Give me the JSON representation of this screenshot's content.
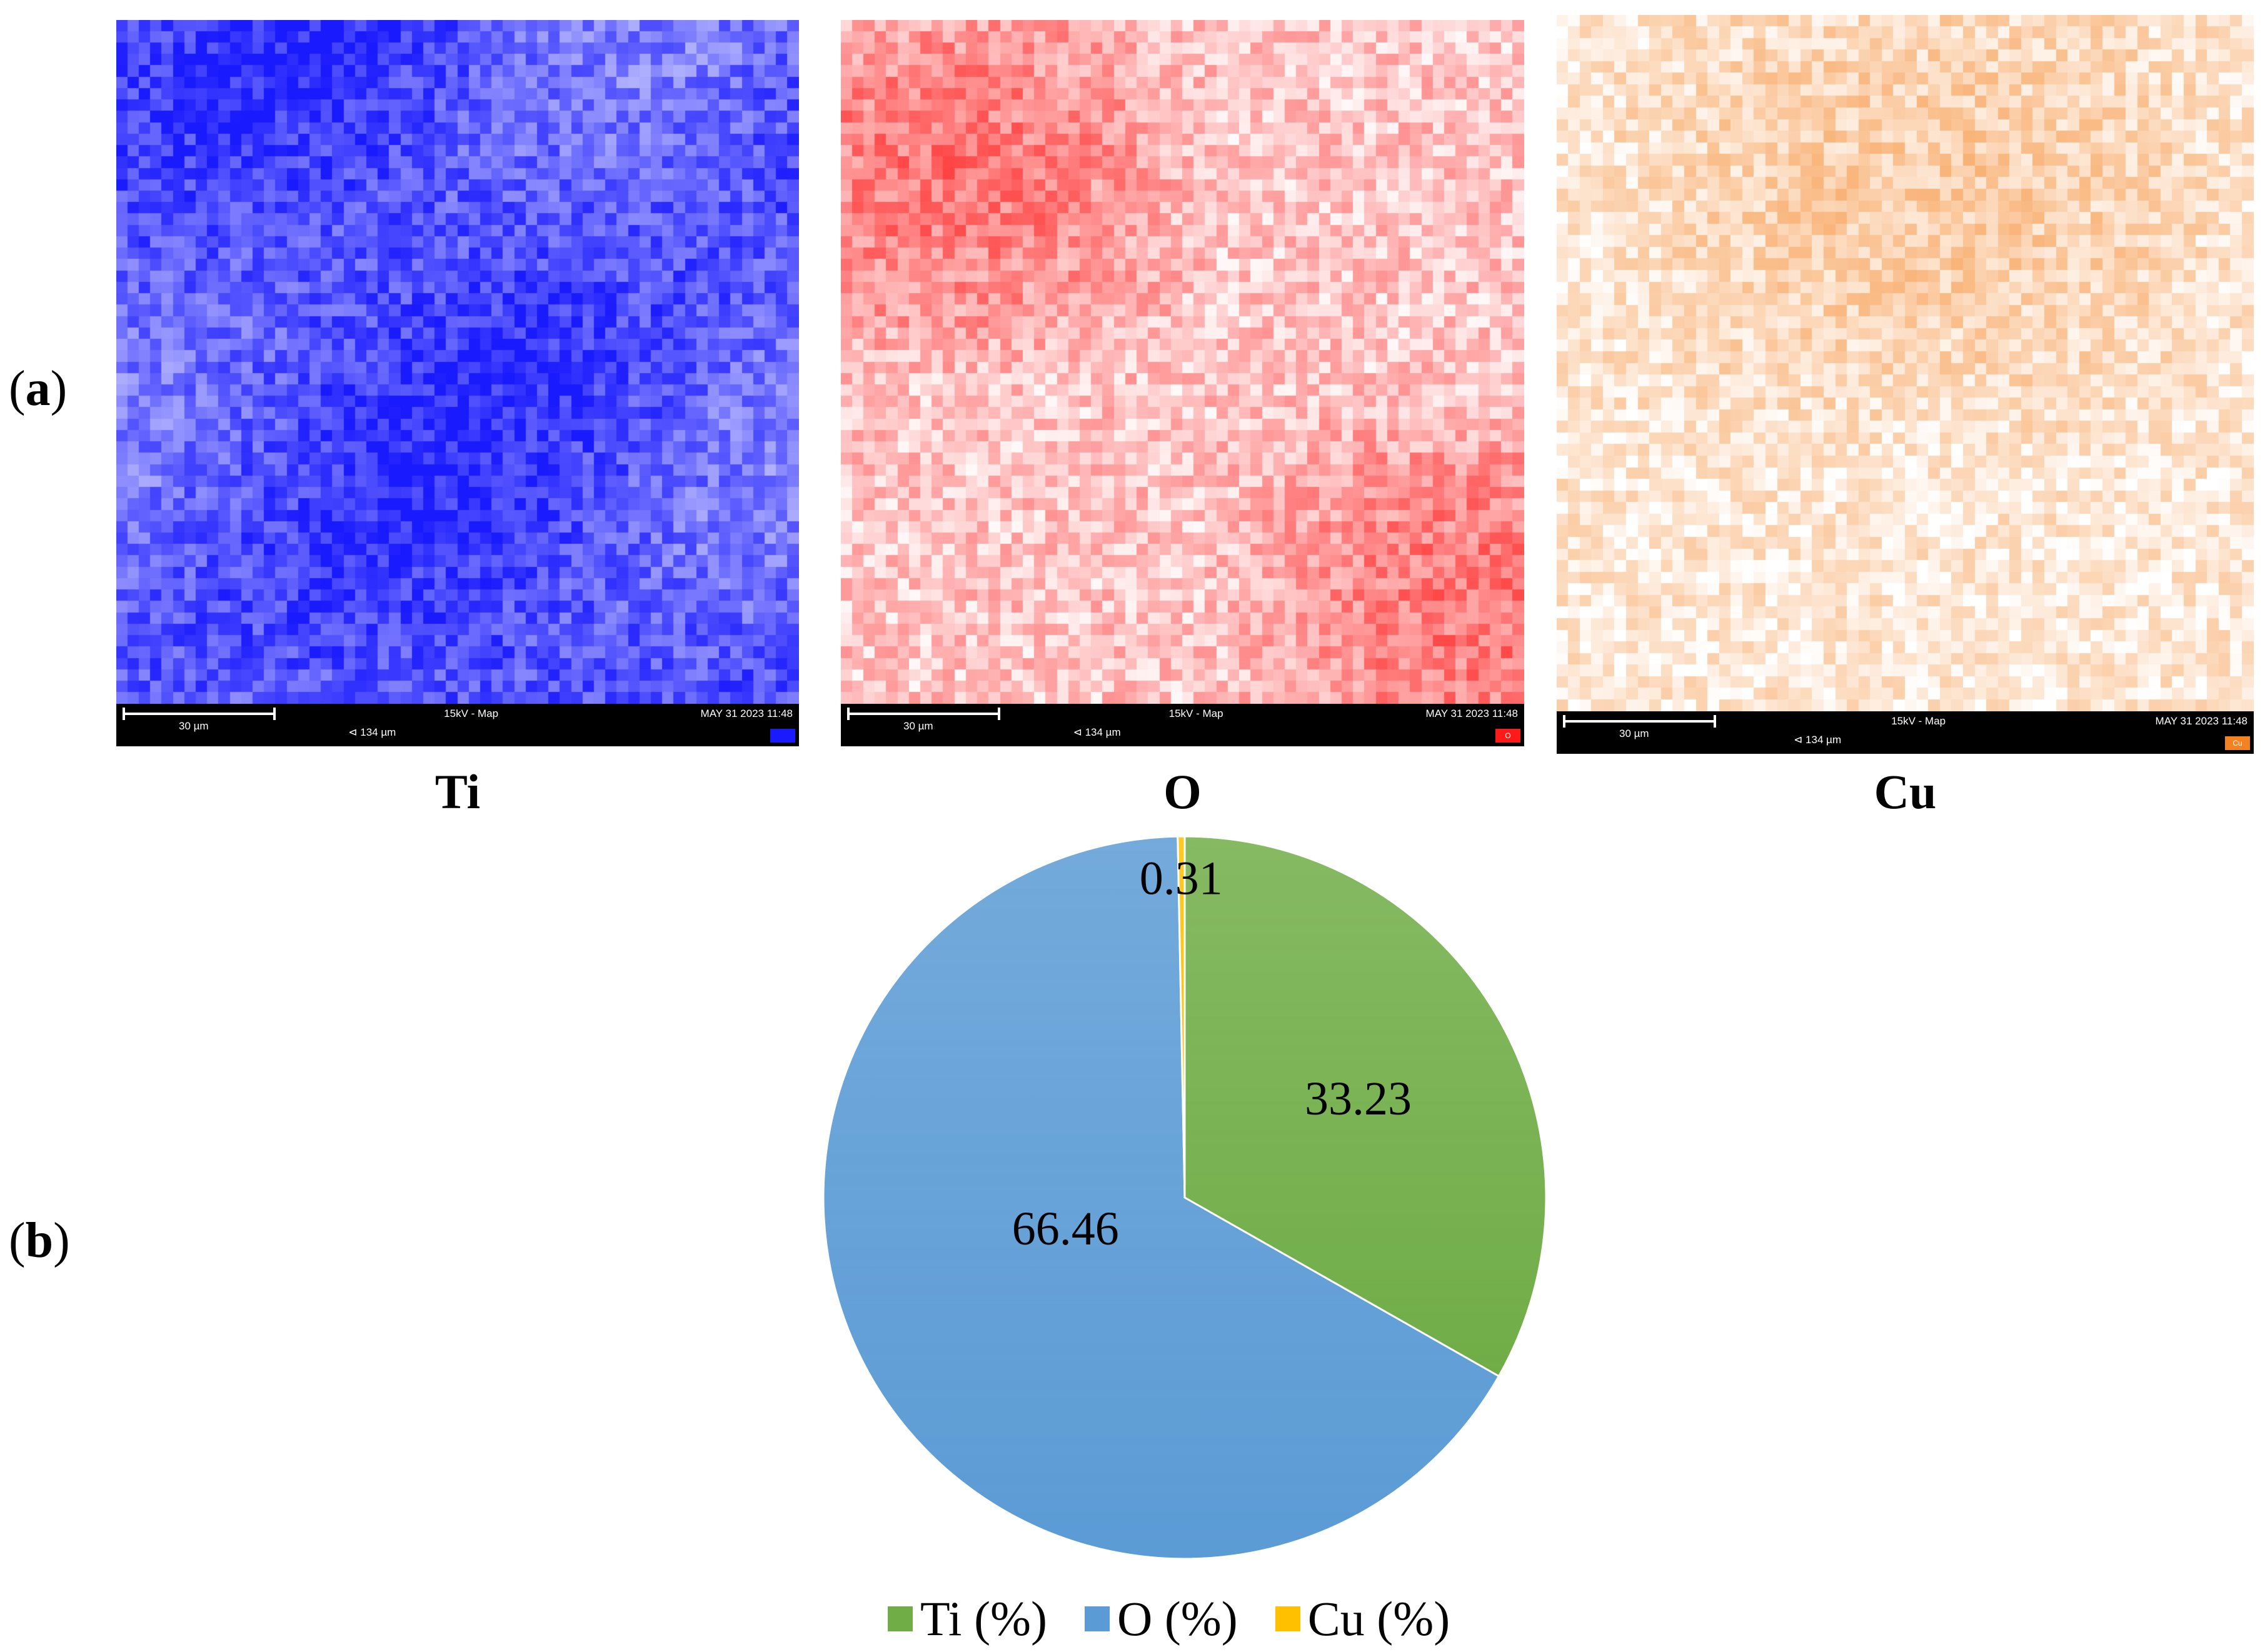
{
  "panels": {
    "a_label": "a",
    "b_label": "b"
  },
  "maps": [
    {
      "element": "Ti",
      "color": "#1a1aff",
      "scale_label": "30 µm",
      "mode_label": "15kV - Map",
      "date_label": "MAY 31 2023 11:48",
      "field_label": "134 µm",
      "field_glyph": "⊲",
      "chip_label": ""
    },
    {
      "element": "O",
      "color": "#ff1a1a",
      "scale_label": "30 µm",
      "mode_label": "15kV - Map",
      "date_label": "MAY 31 2023 11:48",
      "field_label": "134 µm",
      "field_glyph": "⊲",
      "chip_label": "O"
    },
    {
      "element": "Cu",
      "color": "#f58220",
      "scale_label": "30 µm",
      "mode_label": "15kV - Map",
      "date_label": "MAY 31 2023 11:48",
      "field_label": "134 µm",
      "field_glyph": "⊲",
      "chip_label": "Cu"
    }
  ],
  "chart_data": {
    "type": "pie",
    "slices": [
      {
        "name": "Ti (%)",
        "value": 33.23,
        "label": "33.23",
        "color": "#70ad47"
      },
      {
        "name": "O (%)",
        "value": 66.46,
        "label": "66.46",
        "color": "#5b9bd5"
      },
      {
        "name": "Cu (%)",
        "value": 0.31,
        "label": "0.31",
        "color": "#ffc000"
      }
    ],
    "legend_position": "bottom"
  }
}
